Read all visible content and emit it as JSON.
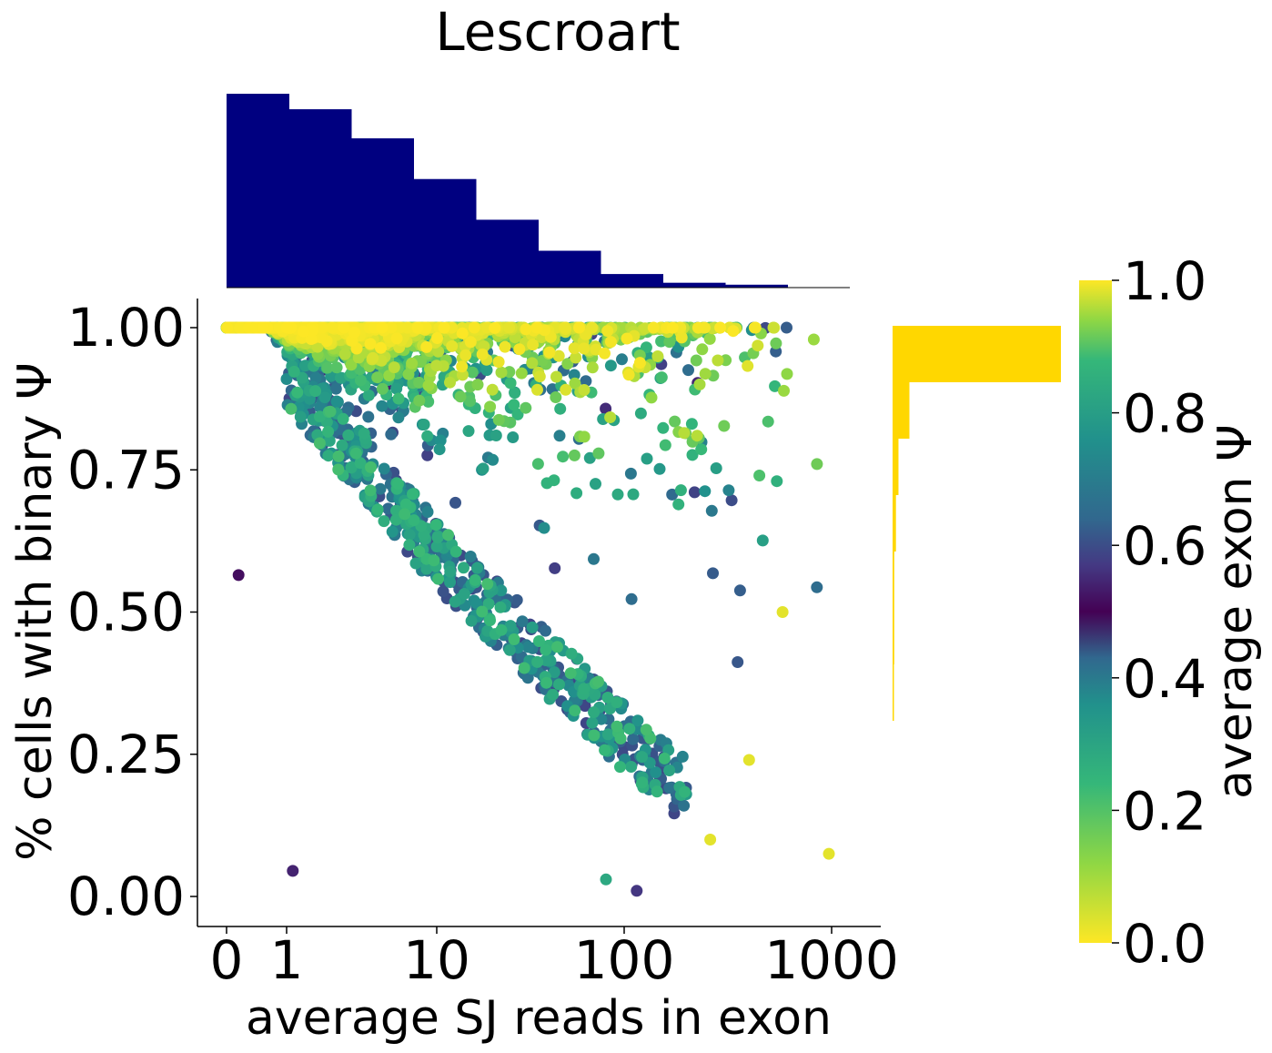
{
  "title": "Lescroart",
  "chart_data": {
    "type": "scatter",
    "title": "Lescroart",
    "xlabel": "average SJ reads in exon",
    "ylabel": "% cells with binary Ψ",
    "x_scale": "symlog",
    "x_ticks": [
      "0",
      "1",
      "10",
      "100",
      "1000"
    ],
    "y_ticks": [
      "0.00",
      "0.25",
      "0.50",
      "0.75",
      "1.00"
    ],
    "ylim": [
      -0.05,
      1.05
    ],
    "xlim": [
      -0.1,
      1500
    ],
    "colorbar": {
      "label": "average exon Ψ",
      "ticks": [
        "0.0",
        "0.2",
        "0.4",
        "0.6",
        "0.8",
        "1.0"
      ],
      "range": [
        0,
        1
      ],
      "colormap": "viridis-diverging (yellow at 0 and 1, dark purple at 0.5)"
    },
    "top_histogram": {
      "color": "#000080",
      "relative_heights": [
        1.0,
        0.92,
        0.77,
        0.56,
        0.35,
        0.19,
        0.07,
        0.025,
        0.015
      ]
    },
    "right_histogram": {
      "color": "#FFD700",
      "relative_widths": [
        1.0,
        0.1,
        0.035,
        0.02,
        0.01,
        0.01,
        0.005
      ]
    },
    "points_note": "~3000 exons; sampled cloud",
    "sample_points": [
      {
        "x": 1.1,
        "y": 0.045,
        "psi": 0.55
      },
      {
        "x": 0.2,
        "y": 0.565,
        "psi": 0.52
      },
      {
        "x": 970,
        "y": 0.075,
        "psi": 0.02
      },
      {
        "x": 580,
        "y": 0.5,
        "psi": 0.02
      },
      {
        "x": 115,
        "y": 0.01,
        "psi": 0.58
      },
      {
        "x": 80,
        "y": 0.03,
        "psi": 0.8
      },
      {
        "x": 260,
        "y": 0.1,
        "psi": 0.02
      },
      {
        "x": 400,
        "y": 0.24,
        "psi": 0.02
      }
    ]
  }
}
